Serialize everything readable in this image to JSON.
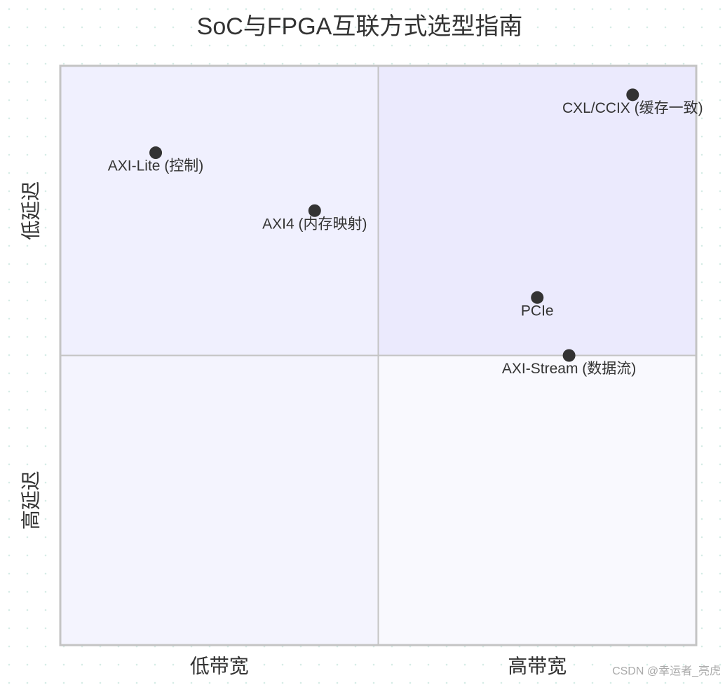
{
  "chart_data": {
    "type": "quadrant",
    "title": "SoC与FPGA互联方式选型指南",
    "x_axis": {
      "left": "低带宽",
      "right": "高带宽"
    },
    "y_axis": {
      "bottom": "高延迟",
      "top": "低延迟"
    },
    "xlim": [
      0,
      1
    ],
    "ylim": [
      0,
      1
    ],
    "quadrant_colors": {
      "top_right": "#ebeafd",
      "top_left": "#f0f0fe",
      "bottom_left": "#f4f4fe",
      "bottom_right": "#f9f9fe"
    },
    "point_color": "#333333",
    "points": [
      {
        "name": "CXL/CCIX (缓存一致)",
        "x": 0.9,
        "y": 0.95
      },
      {
        "name": "AXI-Lite (控制)",
        "x": 0.15,
        "y": 0.85
      },
      {
        "name": "AXI4 (内存映射)",
        "x": 0.4,
        "y": 0.75
      },
      {
        "name": "PCIe",
        "x": 0.75,
        "y": 0.6
      },
      {
        "name": "AXI-Stream (数据流)",
        "x": 0.8,
        "y": 0.5
      }
    ]
  },
  "watermark": "CSDN @幸运者_亮虎"
}
